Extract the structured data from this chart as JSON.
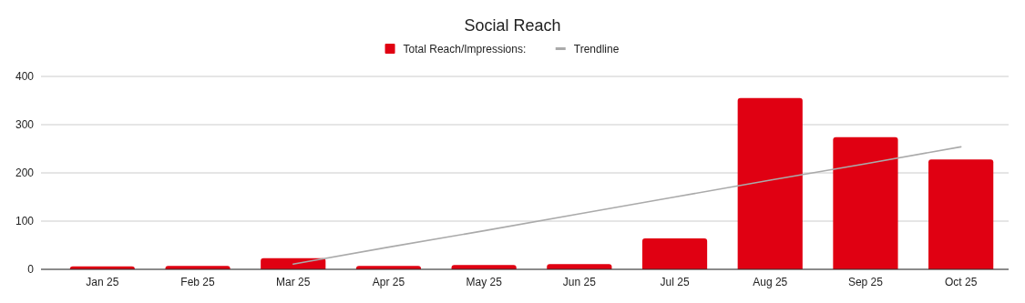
{
  "chart_data": {
    "type": "bar",
    "title": "Social Reach",
    "categories": [
      "Jan 25",
      "Feb 25",
      "Mar 25",
      "Apr 25",
      "May 25",
      "Jun 25",
      "Jul 25",
      "Aug 25",
      "Sep 25",
      "Oct 25"
    ],
    "series": [
      {
        "name": "Total Reach/Impressions:",
        "color": "#e00012",
        "values": [
          6,
          7,
          23,
          7,
          9,
          11,
          64,
          355,
          274,
          228
        ]
      },
      {
        "name": "Trendline",
        "type": "line",
        "color": "#aaaaaa",
        "values": [
          null,
          null,
          11,
          46,
          80,
          115,
          150,
          185,
          219,
          254
        ]
      }
    ],
    "ylim": [
      0,
      400
    ],
    "yticks": [
      0,
      100,
      200,
      300,
      400
    ],
    "grid": "y",
    "legend": "top"
  }
}
